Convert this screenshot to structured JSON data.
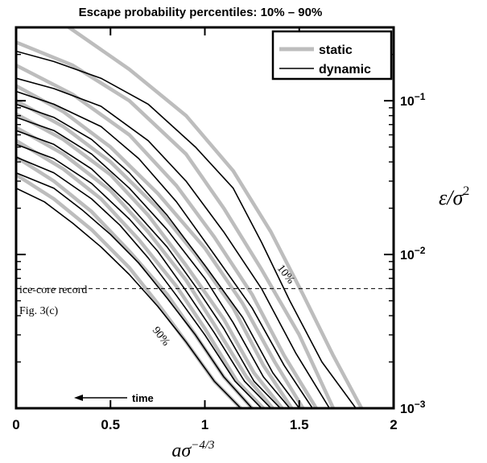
{
  "chart_data": {
    "type": "line",
    "title": "Escape probability percentiles: 10% – 90%",
    "xlabel": "aσ^{−4/3}",
    "xlabel_parts": {
      "base": "aσ",
      "sup": "−4/3"
    },
    "ylabel": "ε/σ²",
    "ylabel_parts": {
      "base": "ε/σ",
      "sup": "2"
    },
    "xlim": [
      0,
      2
    ],
    "ylim": [
      0.001,
      0.3
    ],
    "y_scale": "log",
    "y_axis_side": "right",
    "grid": false,
    "x_ticks": [
      0,
      0.5,
      1,
      1.5,
      2
    ],
    "x_tick_labels": [
      "0",
      "0.5",
      "1",
      "1.5",
      "2"
    ],
    "y_ticks": [
      0.1,
      0.01,
      0.001
    ],
    "y_tick_labels": [
      {
        "base": "10",
        "exp": "−1"
      },
      {
        "base": "10",
        "exp": "−2"
      },
      {
        "base": "10",
        "exp": "−3"
      }
    ],
    "legend": {
      "position": "top-right",
      "entries": [
        {
          "label": "static",
          "color": "#bdbdbd"
        },
        {
          "label": "dynamic",
          "color": "#000000"
        }
      ]
    },
    "reference_line": {
      "y": 0.006,
      "style": "dashed",
      "label_line1": "ice-core record",
      "label_line2": "Fig. 3(c)"
    },
    "annotations": {
      "top_percentile": "10%",
      "bottom_percentile": "90%",
      "arrow_label": "time"
    },
    "series": [
      {
        "group": "static",
        "x": [
          0.28,
          0.6,
          0.9,
          1.15,
          1.35,
          1.52,
          1.68,
          1.83
        ],
        "y": [
          0.3,
          0.16,
          0.08,
          0.035,
          0.014,
          0.0055,
          0.0022,
          0.001
        ]
      },
      {
        "group": "static",
        "x": [
          0,
          0.3,
          0.6,
          0.9,
          1.1,
          1.3,
          1.5,
          1.68
        ],
        "y": [
          0.24,
          0.17,
          0.1,
          0.045,
          0.02,
          0.008,
          0.003,
          0.001
        ]
      },
      {
        "group": "static",
        "x": [
          0,
          0.3,
          0.6,
          0.85,
          1.05,
          1.25,
          1.42,
          1.59
        ],
        "y": [
          0.17,
          0.11,
          0.06,
          0.028,
          0.013,
          0.0055,
          0.0022,
          0.001
        ]
      },
      {
        "group": "static",
        "x": [
          0,
          0.25,
          0.5,
          0.75,
          1.0,
          1.2,
          1.37,
          1.52
        ],
        "y": [
          0.125,
          0.085,
          0.05,
          0.025,
          0.011,
          0.0048,
          0.002,
          0.001
        ]
      },
      {
        "group": "static",
        "x": [
          0,
          0.25,
          0.5,
          0.75,
          0.95,
          1.15,
          1.31,
          1.46
        ],
        "y": [
          0.1,
          0.068,
          0.04,
          0.02,
          0.01,
          0.0045,
          0.0019,
          0.001
        ]
      },
      {
        "group": "static",
        "x": [
          0,
          0.25,
          0.5,
          0.7,
          0.9,
          1.1,
          1.26,
          1.41
        ],
        "y": [
          0.082,
          0.056,
          0.033,
          0.018,
          0.0085,
          0.0038,
          0.0017,
          0.001
        ]
      },
      {
        "group": "static",
        "x": [
          0,
          0.25,
          0.5,
          0.7,
          0.9,
          1.05,
          1.22,
          1.36
        ],
        "y": [
          0.067,
          0.045,
          0.026,
          0.014,
          0.0068,
          0.0035,
          0.0016,
          0.001
        ]
      },
      {
        "group": "static",
        "x": [
          0,
          0.25,
          0.45,
          0.65,
          0.85,
          1.0,
          1.17,
          1.31
        ],
        "y": [
          0.055,
          0.036,
          0.023,
          0.0125,
          0.0062,
          0.0033,
          0.0015,
          0.001
        ]
      },
      {
        "group": "static",
        "x": [
          0,
          0.2,
          0.4,
          0.6,
          0.8,
          0.95,
          1.1,
          1.25
        ],
        "y": [
          0.043,
          0.03,
          0.019,
          0.0105,
          0.0055,
          0.003,
          0.0016,
          0.001
        ]
      },
      {
        "group": "static",
        "x": [
          0,
          0.2,
          0.4,
          0.6,
          0.75,
          0.9,
          1.05,
          1.19
        ],
        "y": [
          0.033,
          0.023,
          0.0145,
          0.0082,
          0.0048,
          0.0027,
          0.0015,
          0.001
        ]
      },
      {
        "group": "dynamic",
        "x": [
          0,
          0.2,
          0.45,
          0.7,
          0.95,
          1.15,
          1.3,
          1.45,
          1.62,
          1.8
        ],
        "y": [
          0.21,
          0.18,
          0.14,
          0.095,
          0.05,
          0.027,
          0.012,
          0.005,
          0.002,
          0.001
        ]
      },
      {
        "group": "dynamic",
        "x": [
          0,
          0.2,
          0.45,
          0.7,
          0.9,
          1.1,
          1.3,
          1.48,
          1.66
        ],
        "y": [
          0.14,
          0.12,
          0.092,
          0.055,
          0.03,
          0.014,
          0.006,
          0.0023,
          0.001
        ]
      },
      {
        "group": "dynamic",
        "x": [
          0,
          0.2,
          0.45,
          0.65,
          0.85,
          1.05,
          1.25,
          1.42,
          1.57
        ],
        "y": [
          0.115,
          0.095,
          0.068,
          0.042,
          0.022,
          0.01,
          0.0045,
          0.0019,
          0.001
        ]
      },
      {
        "group": "dynamic",
        "x": [
          0,
          0.2,
          0.4,
          0.6,
          0.8,
          1.0,
          1.2,
          1.36,
          1.5
        ],
        "y": [
          0.095,
          0.078,
          0.056,
          0.034,
          0.018,
          0.0085,
          0.0039,
          0.0017,
          0.001
        ]
      },
      {
        "group": "dynamic",
        "x": [
          0,
          0.2,
          0.4,
          0.6,
          0.8,
          1.0,
          1.15,
          1.31,
          1.45
        ],
        "y": [
          0.078,
          0.064,
          0.045,
          0.027,
          0.0145,
          0.007,
          0.0036,
          0.0016,
          0.001
        ]
      },
      {
        "group": "dynamic",
        "x": [
          0,
          0.2,
          0.4,
          0.6,
          0.8,
          0.95,
          1.1,
          1.26,
          1.4
        ],
        "y": [
          0.064,
          0.052,
          0.036,
          0.021,
          0.0112,
          0.0062,
          0.0033,
          0.0015,
          0.001
        ]
      },
      {
        "group": "dynamic",
        "x": [
          0,
          0.2,
          0.4,
          0.6,
          0.75,
          0.9,
          1.05,
          1.21,
          1.35
        ],
        "y": [
          0.052,
          0.042,
          0.029,
          0.017,
          0.0105,
          0.0058,
          0.0031,
          0.0015,
          0.001
        ]
      },
      {
        "group": "dynamic",
        "x": [
          0,
          0.2,
          0.4,
          0.55,
          0.7,
          0.85,
          1.0,
          1.16,
          1.3
        ],
        "y": [
          0.043,
          0.034,
          0.023,
          0.0155,
          0.0095,
          0.0054,
          0.003,
          0.0015,
          0.001
        ]
      },
      {
        "group": "dynamic",
        "x": [
          0,
          0.2,
          0.35,
          0.5,
          0.65,
          0.8,
          0.95,
          1.1,
          1.25
        ],
        "y": [
          0.034,
          0.027,
          0.0195,
          0.0135,
          0.0088,
          0.0052,
          0.003,
          0.0016,
          0.001
        ]
      },
      {
        "group": "dynamic",
        "x": [
          0,
          0.15,
          0.3,
          0.45,
          0.6,
          0.75,
          0.9,
          1.05,
          1.19
        ],
        "y": [
          0.027,
          0.022,
          0.016,
          0.0112,
          0.0074,
          0.0046,
          0.0027,
          0.0015,
          0.001
        ]
      }
    ]
  }
}
